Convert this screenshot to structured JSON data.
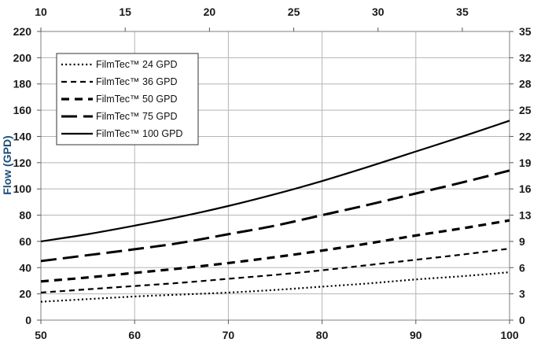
{
  "chart_data": {
    "type": "line",
    "title": "",
    "ylabel": "Flow (GPD)",
    "x_bottom": {
      "ticks": [
        "50",
        "60",
        "70",
        "80",
        "90",
        "100"
      ],
      "lim": [
        50,
        100
      ]
    },
    "x_top": {
      "ticks": [
        "10",
        "15",
        "20",
        "25",
        "30",
        "35"
      ],
      "lim": [
        10,
        37.8
      ]
    },
    "y_left": {
      "ticks": [
        "0",
        "20",
        "40",
        "60",
        "80",
        "100",
        "120",
        "140",
        "160",
        "180",
        "200",
        "220"
      ],
      "lim": [
        0,
        220
      ]
    },
    "y_right": {
      "ticks": [
        "0",
        "3",
        "6",
        "9",
        "13",
        "16",
        "19",
        "22",
        "25",
        "28",
        "32",
        "35"
      ],
      "values": [
        0,
        20,
        40,
        60,
        80,
        100,
        120,
        140,
        160,
        180,
        200,
        220
      ]
    },
    "grid": true,
    "legend_position": "top-left",
    "x": [
      50,
      55,
      60,
      65,
      70,
      75,
      80,
      85,
      90,
      95,
      100
    ],
    "series": [
      {
        "name": "FilmTec™ 24 GPD",
        "dash": "dotted",
        "values": [
          14,
          16,
          18,
          19.5,
          21,
          23,
          25.5,
          28,
          31,
          33.5,
          36.5
        ]
      },
      {
        "name": "FilmTec™ 36 GPD",
        "dash": "dashed",
        "values": [
          21,
          23.5,
          26,
          28.5,
          31.5,
          34.5,
          38,
          42,
          46,
          50,
          54.5
        ]
      },
      {
        "name": "FilmTec™ 50 GPD",
        "dash": "dash-bold",
        "values": [
          29.5,
          32.5,
          36,
          39.5,
          43.5,
          48,
          53,
          58.5,
          64.5,
          70,
          76
        ]
      },
      {
        "name": "FilmTec™ 75 GPD",
        "dash": "long-dash",
        "values": [
          45,
          49.5,
          54,
          59,
          65.5,
          72,
          80,
          88,
          96.5,
          105,
          114
        ]
      },
      {
        "name": "FilmTec™ 100 GPD",
        "dash": "solid",
        "values": [
          60,
          65.5,
          72,
          79,
          87,
          96,
          106,
          117,
          128.5,
          140,
          152
        ]
      }
    ]
  }
}
